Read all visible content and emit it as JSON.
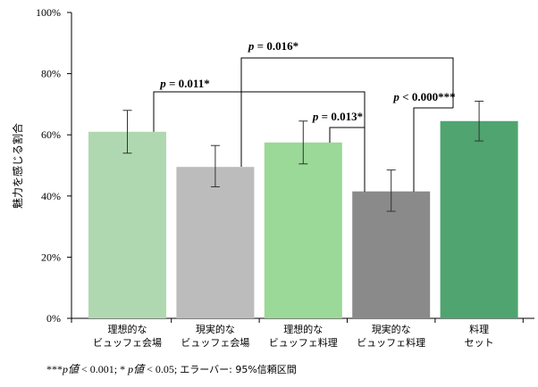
{
  "chart_data": {
    "type": "bar",
    "ylabel": "魅力を感じる割合",
    "ylim": [
      0,
      100
    ],
    "yticks": [
      "0%",
      "20%",
      "40%",
      "60%",
      "80%",
      "100%"
    ],
    "categories": [
      [
        "理想的な",
        "ビュッフェ会場"
      ],
      [
        "現実的な",
        "ビュッフェ会場"
      ],
      [
        "理想的な",
        "ビュッフェ料理"
      ],
      [
        "現実的な",
        "ビュッフェ料理"
      ],
      [
        "料理",
        "セット"
      ]
    ],
    "values": [
      61,
      49.5,
      57.5,
      41.5,
      64.5
    ],
    "ci_low": [
      54,
      43,
      50.5,
      35,
      58
    ],
    "ci_high": [
      68,
      56.5,
      64.5,
      48.5,
      71
    ],
    "colors": [
      "#b0d8b0",
      "#bcbcbc",
      "#9ad997",
      "#8a8a8a",
      "#4fa470"
    ],
    "comparisons": [
      {
        "from": 0,
        "to": 3,
        "label": "p = 0.011*",
        "p_italic": "p",
        "rest": " = 0.011*"
      },
      {
        "from": 1,
        "to": 4,
        "label": "p = 0.016*",
        "p_italic": "p",
        "rest": " = 0.016*"
      },
      {
        "from": 2,
        "to": 3,
        "label": "p = 0.013*",
        "p_italic": "p",
        "rest": " = 0.013*"
      },
      {
        "from": 3,
        "to": 4,
        "label": "p < 0.000***",
        "p_italic": "p",
        "rest": " < 0.000***"
      }
    ],
    "footnote": {
      "part1": "***",
      "p1": "p",
      "val1": "値",
      "lt1": " < 0.001; * ",
      "p2": "p",
      "val2": "値",
      "lt2": " < 0.05; ",
      "err": "エラーバー: 95%信頼区間"
    },
    "grid": false
  }
}
